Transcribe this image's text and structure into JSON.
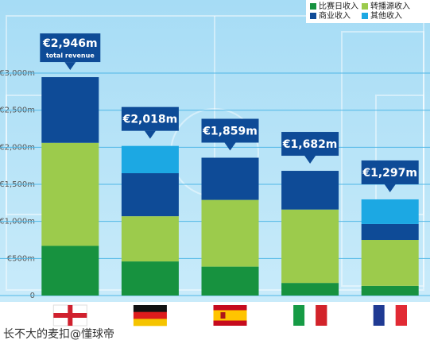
{
  "chart_data": {
    "type": "stacked_bar",
    "categories": [
      null,
      null,
      null,
      null,
      null
    ],
    "series": [
      {
        "name": "比赛日收入",
        "color": "#17923f",
        "values": [
          670,
          460,
          390,
          170,
          130
        ]
      },
      {
        "name": "转播源收入",
        "color": "#9ccb4c",
        "values": [
          1390,
          610,
          900,
          990,
          620
        ]
      },
      {
        "name": "商业收入",
        "color": "#0e4b97",
        "values": [
          886,
          580,
          569,
          522,
          215
        ]
      },
      {
        "name": "其他收入",
        "color": "#1ca8e3",
        "values": [
          null,
          368,
          null,
          null,
          332
        ]
      }
    ],
    "annotations": [
      "€2,946m",
      "€2,018m",
      "€1,859m",
      "€1,682m",
      "€1,297m"
    ],
    "annotation_note": "total revenue",
    "ylim": [
      0,
      4000
    ],
    "yticks": [
      0,
      {
        "value": 500,
        "label": "€500m"
      },
      {
        "value": 1000,
        "label": "€1,000m"
      },
      {
        "value": 1500,
        "label": "€1,500m"
      },
      {
        "value": 2000,
        "label": "€2,000m"
      },
      {
        "value": 2500,
        "label": "€2,500m"
      },
      {
        "value": 3000,
        "label": "€3,000m"
      }
    ],
    "grid": true,
    "watermark": "长不大的麦扣@懂球帝"
  }
}
